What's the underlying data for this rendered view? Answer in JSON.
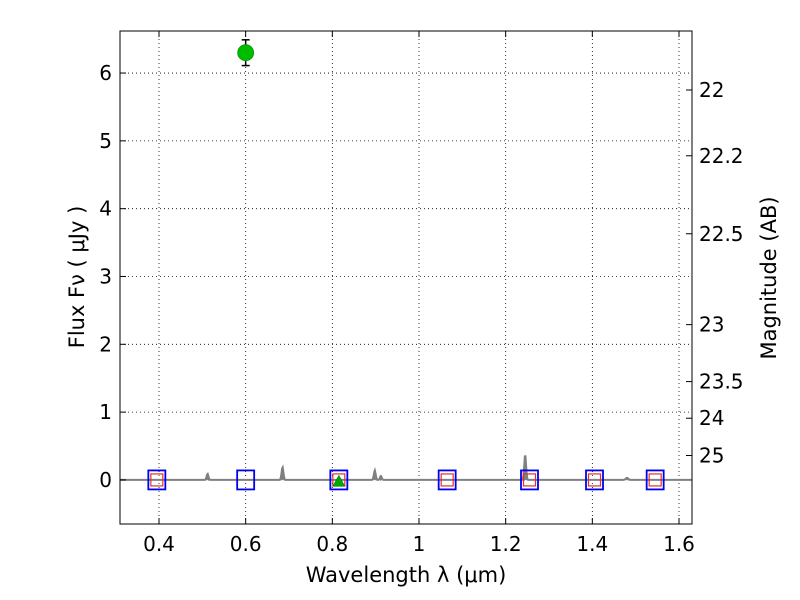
{
  "chart_data": {
    "type": "scatter",
    "xlabel": "Wavelength  λ (μm)",
    "ylabel": "Flux  Fν  ( μJy )",
    "y2label": "Magnitude (AB)",
    "xlim": [
      0.31,
      1.63
    ],
    "ylim": [
      -0.65,
      6.62
    ],
    "grid": true,
    "x_ticks": [
      0.4,
      0.6,
      0.8,
      1.0,
      1.2,
      1.4,
      1.6
    ],
    "x_tick_labels": [
      "0.4",
      "0.6",
      "0.8",
      "1",
      "1.2",
      "1.4",
      "1.6"
    ],
    "y_ticks": [
      0,
      1,
      2,
      3,
      4,
      5,
      6
    ],
    "y_tick_labels": [
      "0",
      "1",
      "2",
      "3",
      "4",
      "5",
      "6"
    ],
    "mag_ticks": [
      {
        "flux": 5.75,
        "label": "22"
      },
      {
        "flux": 4.78,
        "label": "22.2"
      },
      {
        "flux": 3.63,
        "label": "22.5"
      },
      {
        "flux": 2.29,
        "label": "23"
      },
      {
        "flux": 1.45,
        "label": "23.5"
      },
      {
        "flux": 0.91,
        "label": "24"
      },
      {
        "flux": 0.36,
        "label": "25"
      }
    ],
    "observed_points": [
      {
        "x": 0.6,
        "y": 6.3,
        "yerr": 0.19,
        "color": "#00bb00"
      }
    ],
    "upper_limit_points": [
      {
        "x": 0.815,
        "y": -0.02,
        "color": "#00aa00"
      }
    ],
    "model_photometry_squares": {
      "x": [
        0.395,
        0.6,
        0.815,
        1.065,
        1.255,
        1.405,
        1.545
      ],
      "y": [
        0,
        0,
        0,
        0,
        0,
        0,
        0
      ],
      "color": "#0000ee"
    },
    "filter_points_red": {
      "x": [
        0.395,
        0.815,
        1.065,
        1.255,
        1.405,
        1.545
      ],
      "y": [
        0,
        0,
        0,
        0,
        0,
        0
      ],
      "color": "#dd3333"
    },
    "sed_model_spectrum": {
      "color": "#808080",
      "baseline": 0.0,
      "peaks": [
        {
          "x": 0.512,
          "height": 0.09,
          "width": 0.002
        },
        {
          "x": 0.685,
          "height": 0.19,
          "width": 0.002
        },
        {
          "x": 0.898,
          "height": 0.14,
          "width": 0.002
        },
        {
          "x": 0.912,
          "height": 0.06,
          "width": 0.002
        },
        {
          "x": 1.245,
          "height": 0.37,
          "width": 0.002
        },
        {
          "x": 1.48,
          "height": 0.03,
          "width": 0.003
        }
      ]
    }
  }
}
